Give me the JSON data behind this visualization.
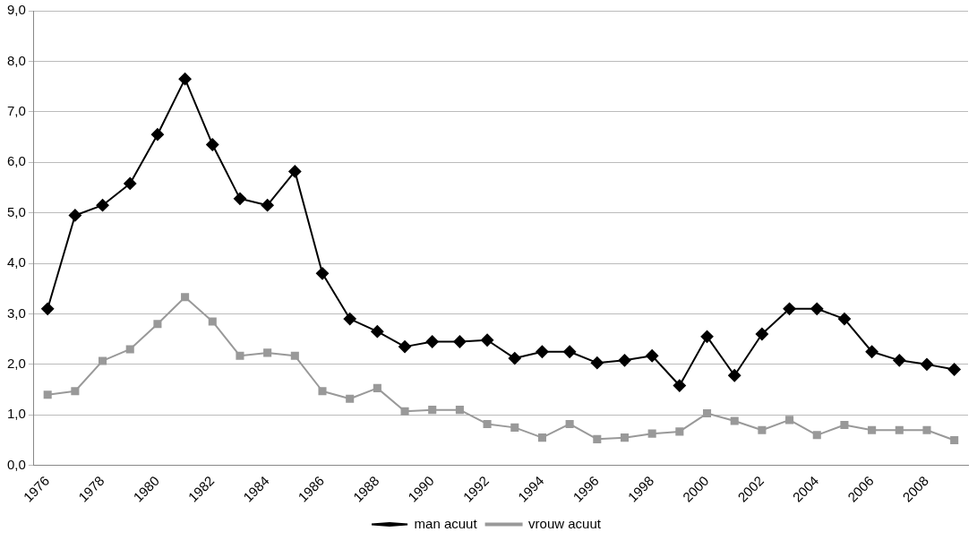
{
  "chart_data": {
    "type": "line",
    "categories": [
      "1976",
      null,
      "1978",
      null,
      "1980",
      null,
      "1982",
      null,
      "1984",
      null,
      "1986",
      null,
      "1988",
      null,
      "1990",
      null,
      "1992",
      null,
      "1994",
      null,
      "1996",
      null,
      "1998",
      null,
      "2000",
      null,
      "2002",
      null,
      "2004",
      null,
      "2006",
      null,
      "2008",
      null
    ],
    "series": [
      {
        "name": "man acuut",
        "color": "#000000",
        "marker": "diamond",
        "values": [
          3.1,
          4.95,
          5.15,
          5.58,
          6.55,
          7.65,
          6.35,
          5.28,
          5.15,
          5.82,
          3.8,
          2.9,
          2.65,
          2.35,
          2.45,
          2.45,
          2.48,
          2.12,
          2.25,
          2.25,
          2.03,
          2.08,
          2.17,
          1.58,
          2.55,
          1.78,
          2.6,
          3.1,
          3.1,
          2.9,
          2.25,
          2.08,
          2.0,
          1.9
        ]
      },
      {
        "name": "vrouw acuut",
        "color": "#999999",
        "marker": "square",
        "values": [
          1.4,
          1.47,
          2.07,
          2.3,
          2.8,
          3.33,
          2.85,
          2.17,
          2.23,
          2.17,
          1.47,
          1.32,
          1.53,
          1.07,
          1.1,
          1.1,
          0.82,
          0.75,
          0.55,
          0.82,
          0.52,
          0.55,
          0.63,
          0.67,
          1.03,
          0.88,
          0.7,
          0.9,
          0.6,
          0.8,
          0.7,
          0.7,
          0.7,
          0.5
        ]
      }
    ],
    "ylim": [
      0,
      9
    ],
    "yticks": [
      {
        "value": 0,
        "label": "0,0"
      },
      {
        "value": 1,
        "label": "1,0"
      },
      {
        "value": 2,
        "label": "2,0"
      },
      {
        "value": 3,
        "label": "3,0"
      },
      {
        "value": 4,
        "label": "4,0"
      },
      {
        "value": 5,
        "label": "5,0"
      },
      {
        "value": 6,
        "label": "6,0"
      },
      {
        "value": 7,
        "label": "7,0"
      },
      {
        "value": 8,
        "label": "8,0"
      },
      {
        "value": 9,
        "label": "9,0"
      }
    ],
    "grid": "y",
    "legend": "bottom",
    "line_style": "solid"
  }
}
